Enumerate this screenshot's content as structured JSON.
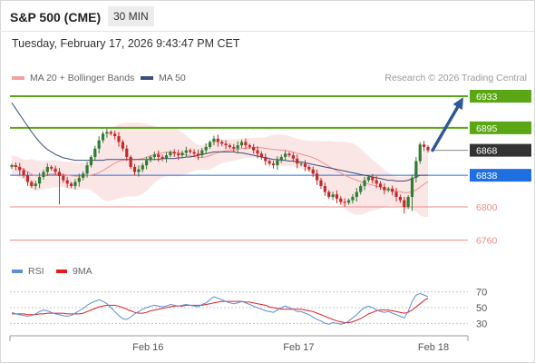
{
  "header": {
    "title": "S&P 500 (CME)",
    "period": "30 MIN",
    "datetime": "Tuesday, February 17, 2026 9:43:47 PM CET"
  },
  "legend": {
    "bb_label": "MA 20 + Bollinger Bands",
    "ma50_label": "MA 50",
    "credit": "Research © 2026 Trading Central"
  },
  "rsi_legend": {
    "rsi_label": "RSI",
    "ma_label": "9MA"
  },
  "colors": {
    "up_candle": "#2e7d32",
    "down_candle": "#c62828",
    "bollinger_fill": "#fadcdc",
    "ma20": "#ee8e8e",
    "ma50": "#3a4f7a",
    "resistance": "#5aa614",
    "support": "#f08a8a",
    "pivot": "#1f6fe0",
    "last_price": "#333333",
    "arrow": "#2f5a96",
    "rsi": "#5b8ed8",
    "rsi_ma": "#e02020"
  },
  "chart_data": {
    "type": "candlestick",
    "price_axis": {
      "ylim": [
        6740,
        6945
      ]
    },
    "levels": [
      {
        "value": 6933,
        "label": "6933",
        "kind": "resistance"
      },
      {
        "value": 6895,
        "label": "6895",
        "kind": "resistance"
      },
      {
        "value": 6868,
        "label": "6868",
        "kind": "last_price"
      },
      {
        "value": 6838,
        "label": "6838",
        "kind": "pivot"
      },
      {
        "value": 6800,
        "label": "6800",
        "kind": "support"
      },
      {
        "value": 6760,
        "label": "6760",
        "kind": "support"
      }
    ],
    "closes": [
      6850,
      6848,
      6844,
      6838,
      6830,
      6825,
      6828,
      6836,
      6842,
      6848,
      6846,
      6842,
      6837,
      6832,
      6828,
      6825,
      6830,
      6835,
      6840,
      6850,
      6860,
      6870,
      6880,
      6888,
      6890,
      6888,
      6885,
      6878,
      6870,
      6860,
      6848,
      6842,
      6845,
      6850,
      6856,
      6860,
      6863,
      6860,
      6858,
      6862,
      6866,
      6864,
      6862,
      6865,
      6868,
      6866,
      6864,
      6862,
      6868,
      6872,
      6878,
      6882,
      6878,
      6876,
      6874,
      6872,
      6870,
      6874,
      6878,
      6874,
      6872,
      6868,
      6864,
      6860,
      6855,
      6852,
      6850,
      6856,
      6860,
      6864,
      6862,
      6858,
      6852,
      6852,
      6848,
      6845,
      6840,
      6832,
      6825,
      6818,
      6812,
      6815,
      6810,
      6806,
      6805,
      6808,
      6812,
      6818,
      6825,
      6832,
      6836,
      6832,
      6828,
      6824,
      6820,
      6822,
      6818,
      6812,
      6808,
      6800,
      6812,
      6835,
      6855,
      6875,
      6872,
      6868
    ],
    "ma50": [
      6925,
      6918,
      6911,
      6904,
      6897,
      6890,
      6884,
      6878,
      6873,
      6869,
      6866,
      6863,
      6861,
      6859,
      6858,
      6857,
      6856,
      6856,
      6856,
      6856,
      6856,
      6856,
      6856,
      6856,
      6857,
      6857,
      6857,
      6857,
      6857,
      6857,
      6857,
      6857,
      6857,
      6857,
      6857,
      6857,
      6857,
      6857,
      6858,
      6858,
      6858,
      6858,
      6859,
      6859,
      6860,
      6860,
      6861,
      6862,
      6863,
      6864,
      6865,
      6866,
      6866,
      6866,
      6866,
      6866,
      6866,
      6865,
      6865,
      6864,
      6863,
      6862,
      6861,
      6860,
      6859,
      6858,
      6857,
      6857,
      6856,
      6856,
      6855,
      6855,
      6854,
      6854,
      6853,
      6852,
      6851,
      6850,
      6849,
      6848,
      6847,
      6846,
      6845,
      6844,
      6843,
      6842,
      6841,
      6840,
      6839,
      6838,
      6837,
      6836,
      6835,
      6834,
      6833,
      6832,
      6832,
      6831,
      6831,
      6831,
      6832,
      6834,
      6836,
      6838,
      6838,
      6838
    ],
    "projection": {
      "from": 6868,
      "to": 6933
    },
    "rsi_axis": {
      "ylim": [
        20,
        80
      ],
      "ticks": [
        "70",
        "50",
        "30"
      ]
    },
    "rsi": [
      44,
      42,
      41,
      40,
      39,
      40,
      42,
      45,
      47,
      46,
      44,
      42,
      41,
      40,
      39,
      40,
      43,
      46,
      49,
      53,
      56,
      58,
      60,
      58,
      55,
      50,
      45,
      40,
      36,
      35,
      38,
      42,
      45,
      48,
      50,
      52,
      53,
      52,
      51,
      52,
      54,
      53,
      52,
      53,
      54,
      53,
      52,
      51,
      54,
      56,
      60,
      64,
      62,
      60,
      58,
      56,
      55,
      56,
      58,
      56,
      54,
      52,
      50,
      48,
      46,
      45,
      44,
      47,
      50,
      52,
      50,
      48,
      45,
      45,
      43,
      41,
      38,
      35,
      33,
      30,
      29,
      31,
      30,
      29,
      30,
      33,
      37,
      41,
      46,
      50,
      52,
      50,
      47,
      45,
      44,
      45,
      43,
      41,
      39,
      37,
      45,
      58,
      66,
      68,
      66,
      64
    ],
    "rsi_ma": [
      42,
      42,
      42,
      42,
      41,
      41,
      41,
      42,
      42,
      43,
      43,
      43,
      43,
      43,
      42,
      42,
      42,
      42,
      43,
      45,
      47,
      49,
      51,
      52,
      53,
      53,
      53,
      52,
      50,
      48,
      46,
      44,
      43,
      43,
      44,
      46,
      47,
      48,
      49,
      50,
      51,
      52,
      52,
      52,
      53,
      53,
      53,
      53,
      53,
      54,
      55,
      56,
      57,
      58,
      58,
      58,
      58,
      58,
      58,
      57,
      57,
      56,
      55,
      54,
      53,
      51,
      50,
      49,
      48,
      48,
      48,
      48,
      48,
      48,
      47,
      46,
      45,
      43,
      41,
      39,
      37,
      35,
      33,
      32,
      31,
      31,
      32,
      34,
      36,
      39,
      42,
      44,
      46,
      47,
      47,
      47,
      46,
      45,
      44,
      43,
      44,
      47,
      51,
      55,
      59,
      62
    ],
    "x_ticks": [
      "Feb 16",
      "Feb 17",
      "Feb 18"
    ]
  }
}
